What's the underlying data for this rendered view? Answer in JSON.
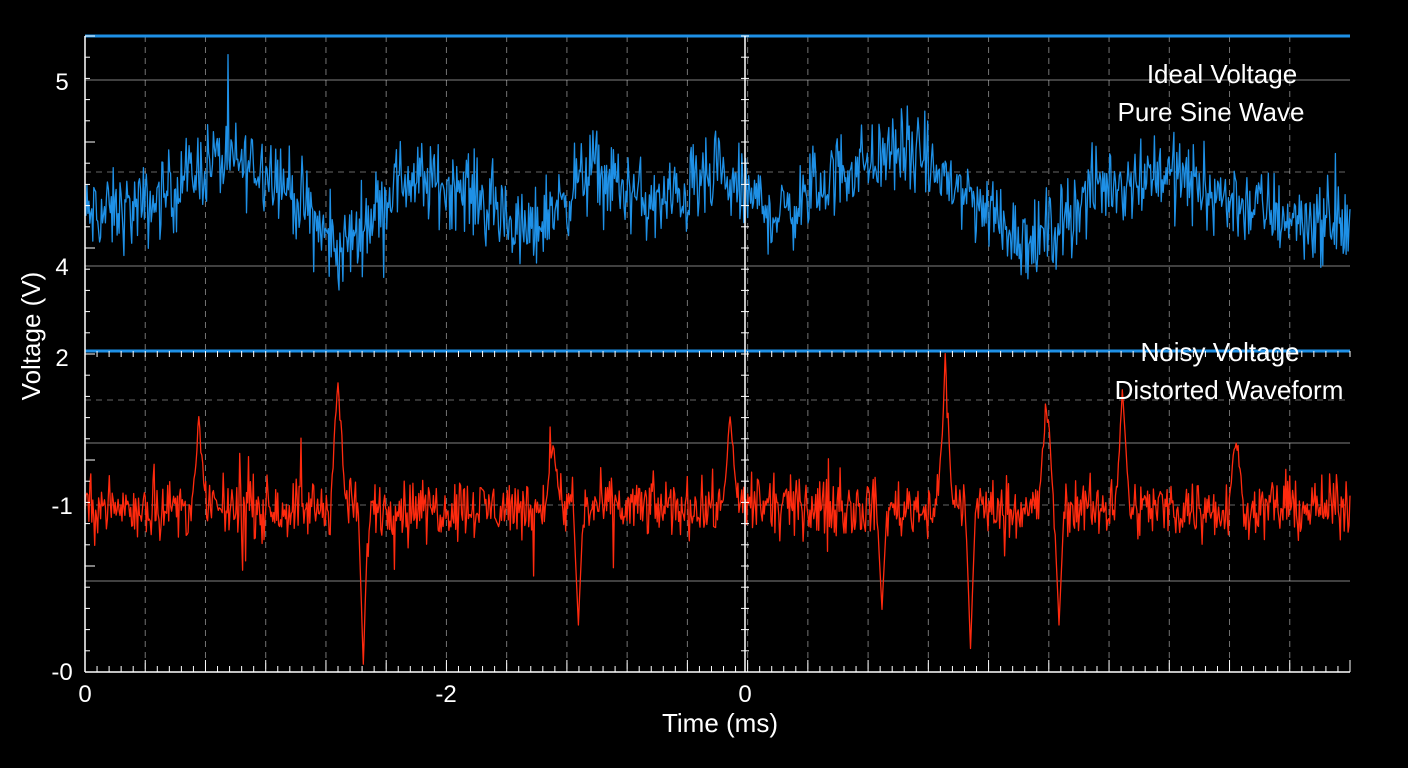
{
  "chart_data": {
    "type": "line",
    "xlabel": "Time (ms)",
    "ylabel": "Voltage (V)",
    "x_tick_labels": [
      "0",
      "-2",
      "0"
    ],
    "grid": true,
    "legend_placement": "top-right",
    "panels": [
      {
        "name": "top",
        "y_tick_labels": [
          "5",
          "4"
        ],
        "ylim": [
          3.65,
          5.25
        ],
        "series": [
          {
            "name": "Ideal Voltage",
            "subtitle": "Pure Sine Wave",
            "color": "#1e90e6",
            "reference_level": 5.5,
            "envelope_x": [
              0,
              0.5,
              1,
              1.5,
              2,
              2.5,
              3,
              3.5,
              4,
              4.5,
              5,
              5.5,
              6,
              6.5,
              7,
              7.5,
              8,
              8.5,
              9,
              9.5,
              10
            ],
            "envelope_y": [
              4.3,
              4.35,
              4.6,
              4.55,
              4.1,
              4.5,
              4.45,
              4.2,
              4.55,
              4.35,
              4.5,
              4.3,
              4.55,
              4.65,
              4.4,
              4.15,
              4.45,
              4.55,
              4.4,
              4.3,
              4.25
            ],
            "noise_amplitude": 0.15
          }
        ]
      },
      {
        "name": "bottom",
        "y_tick_labels": [
          "2",
          "-1",
          "-0"
        ],
        "ylim": [
          -0.1,
          1.95
        ],
        "series": [
          {
            "name": "Noisy Voltage",
            "subtitle": "Distorted Waveform",
            "color": "#ff2a0e",
            "reference_level": 2.0,
            "baseline": 0.95,
            "noise_amplitude": 0.12,
            "spike_x": [
              0.9,
              2.0,
              3.7,
              5.1,
              6.8,
              7.6,
              8.2,
              9.1
            ],
            "spike_y": [
              1.55,
              1.92,
              1.45,
              1.6,
              1.95,
              1.8,
              1.75,
              1.52
            ],
            "dip_x": [
              2.2,
              3.9,
              6.3,
              7.0,
              7.7
            ],
            "dip_y": [
              -0.05,
              0.2,
              0.3,
              0.05,
              0.2
            ]
          }
        ]
      }
    ]
  }
}
